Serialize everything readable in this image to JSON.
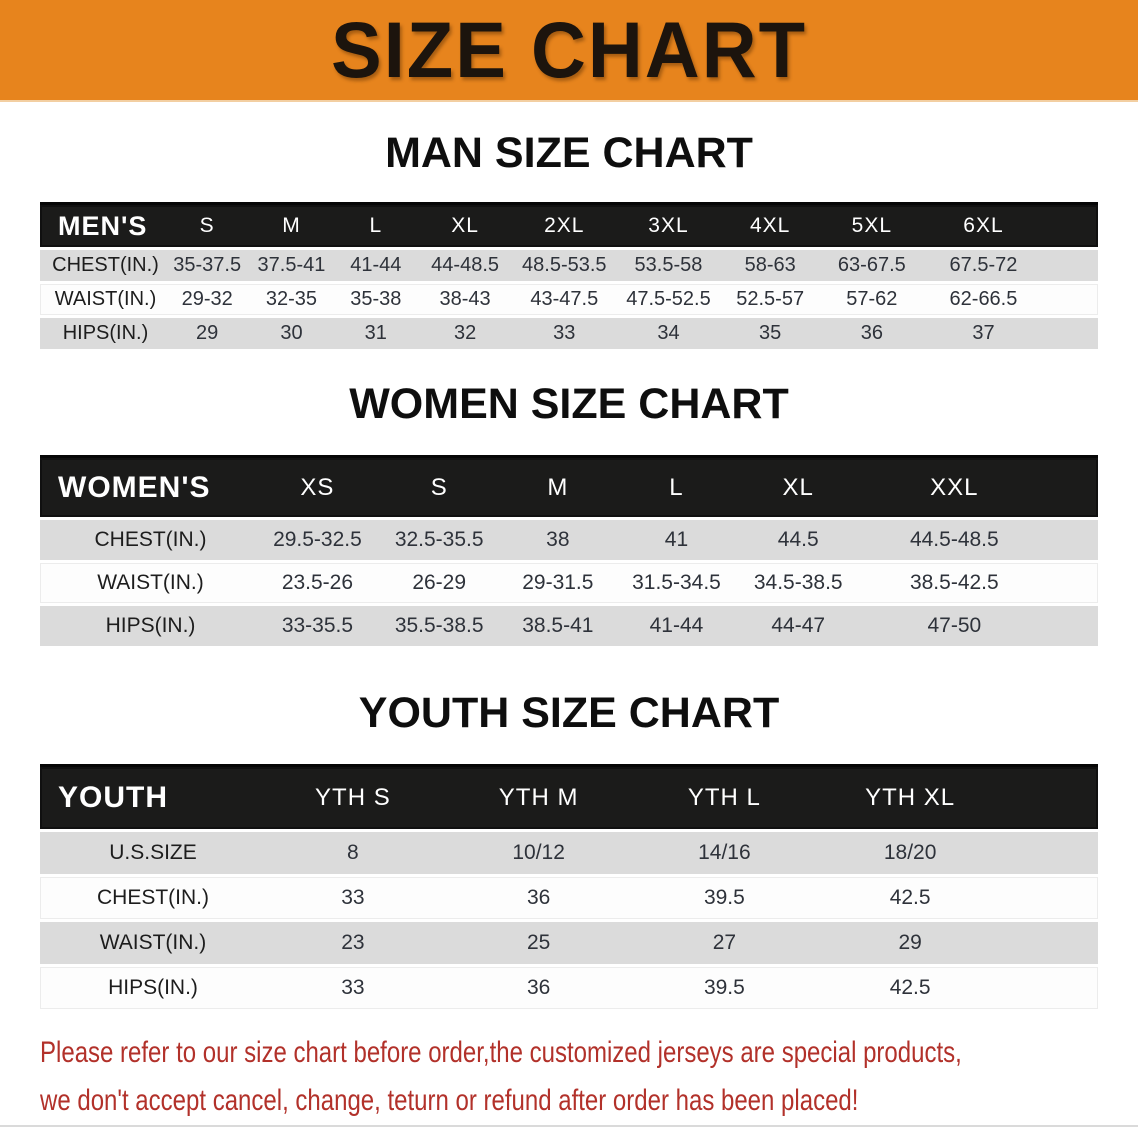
{
  "banner": {
    "title": "SIZE CHART",
    "bg_color": "#E7841D",
    "text_color": "#1C140D"
  },
  "sections": [
    {
      "id": "men",
      "heading": "MAN SIZE CHART",
      "corner": "MEN'S",
      "columns": [
        "S",
        "M",
        "L",
        "XL",
        "2XL",
        "3XL",
        "4XL",
        "5XL",
        "6XL"
      ],
      "rows": [
        {
          "label": "CHEST(IN.)",
          "values": [
            "35-37.5",
            "37.5-41",
            "41-44",
            "44-48.5",
            "48.5-53.5",
            "53.5-58",
            "58-63",
            "63-67.5",
            "67.5-72"
          ]
        },
        {
          "label": "WAIST(IN.)",
          "values": [
            "29-32",
            "32-35",
            "35-38",
            "38-43",
            "43-47.5",
            "47.5-52.5",
            "52.5-57",
            "57-62",
            "62-66.5"
          ]
        },
        {
          "label": "HIPS(IN.)",
          "values": [
            "29",
            "30",
            "31",
            "32",
            "33",
            "34",
            "35",
            "36",
            "37"
          ]
        }
      ]
    },
    {
      "id": "women",
      "heading": "WOMEN SIZE CHART",
      "corner": "WOMEN'S",
      "columns": [
        "XS",
        "S",
        "M",
        "L",
        "XL",
        "XXL"
      ],
      "rows": [
        {
          "label": "CHEST(IN.)",
          "values": [
            "29.5-32.5",
            "32.5-35.5",
            "38",
            "41",
            "44.5",
            "44.5-48.5"
          ]
        },
        {
          "label": "WAIST(IN.)",
          "values": [
            "23.5-26",
            "26-29",
            "29-31.5",
            "31.5-34.5",
            "34.5-38.5",
            "38.5-42.5"
          ]
        },
        {
          "label": "HIPS(IN.)",
          "values": [
            "33-35.5",
            "35.5-38.5",
            "38.5-41",
            "41-44",
            "44-47",
            "47-50"
          ]
        }
      ]
    },
    {
      "id": "youth",
      "heading": "YOUTH SIZE CHART",
      "corner": "YOUTH",
      "columns": [
        "YTH S",
        "YTH M",
        "YTH L",
        "YTH XL"
      ],
      "rows": [
        {
          "label": "U.S.SIZE",
          "values": [
            "8",
            "10/12",
            "14/16",
            "18/20"
          ]
        },
        {
          "label": "CHEST(IN.)",
          "values": [
            "33",
            "36",
            "39.5",
            "42.5"
          ]
        },
        {
          "label": "WAIST(IN.)",
          "values": [
            "23",
            "25",
            "27",
            "29"
          ]
        },
        {
          "label": "HIPS(IN.)",
          "values": [
            "33",
            "36",
            "39.5",
            "42.5"
          ]
        }
      ]
    }
  ],
  "disclaimer": {
    "color": "#B2312A",
    "lines": [
      "Please refer to our size chart before order,the customized jerseys are special products,",
      "we don't accept cancel, change, teturn or refund after order has been placed!"
    ]
  },
  "colors": {
    "table_header_bar": "#1B1B1A",
    "stripe_row": "#DBDBDB"
  }
}
